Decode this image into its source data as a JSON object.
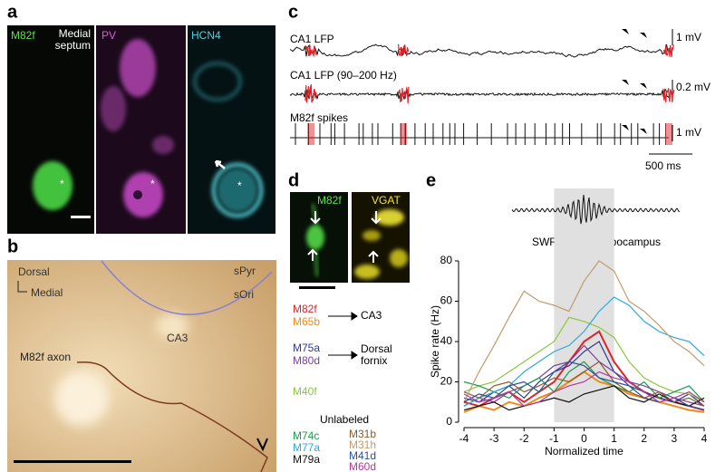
{
  "panel_a": {
    "label": "a",
    "channels": [
      "M82f",
      "Medial septum",
      "PV",
      "HCN4"
    ]
  },
  "panel_b": {
    "label": "b",
    "orientation": [
      "Dorsal",
      "Medial"
    ],
    "regions": [
      "sPyr",
      "sOri",
      "CA3"
    ],
    "axon": "M82f axon"
  },
  "panel_c": {
    "label": "c",
    "traces": [
      "CA1 LFP",
      "CA1 LFP (90–200 Hz)",
      "M82f spikes"
    ],
    "scales": [
      "1 mV",
      "0.2 mV",
      "1 mV"
    ],
    "time_scale": "500 ms"
  },
  "panel_d": {
    "label": "d",
    "channels": [
      "M82f",
      "VGAT"
    ],
    "targets": [
      "CA3",
      "Dorsal fornix"
    ],
    "group": "Unlabeled"
  },
  "panel_e": {
    "label": "e",
    "trace_label": "SWR in CA1 hippocampus"
  },
  "chart_data": {
    "type": "line",
    "x_label": "Normalized time",
    "y_label": "Spike rate (Hz)",
    "x": [
      -4,
      -3.5,
      -3,
      -2.5,
      -2,
      -1.5,
      -1,
      -0.5,
      0,
      0.5,
      1,
      1.5,
      2,
      2.5,
      3,
      3.5,
      4
    ],
    "xlim": [
      -4,
      4
    ],
    "xticks": [
      -4,
      -3,
      -2,
      -1,
      0,
      1,
      2,
      3,
      4
    ],
    "ylim": [
      0,
      80
    ],
    "yticks": [
      0,
      20,
      40,
      60,
      80
    ],
    "shaded_span": [
      -1,
      1
    ],
    "series": [
      {
        "name": "M82f",
        "color": "#d9262b",
        "values": [
          10,
          8,
          12,
          15,
          10,
          15,
          20,
          30,
          40,
          45,
          30,
          20,
          15,
          12,
          10,
          8,
          6
        ]
      },
      {
        "name": "M65b",
        "color": "#f08a1c",
        "values": [
          5,
          8,
          6,
          10,
          8,
          12,
          15,
          20,
          25,
          20,
          18,
          14,
          12,
          10,
          8,
          6,
          5
        ]
      },
      {
        "name": "M75a",
        "color": "#2b3a8f",
        "values": [
          12,
          10,
          15,
          18,
          12,
          20,
          25,
          28,
          35,
          40,
          25,
          18,
          15,
          12,
          10,
          14,
          8
        ]
      },
      {
        "name": "M80d",
        "color": "#7b3f9a",
        "values": [
          8,
          12,
          10,
          15,
          18,
          22,
          28,
          30,
          38,
          30,
          25,
          20,
          18,
          15,
          12,
          10,
          8
        ]
      },
      {
        "name": "M40f",
        "color": "#8cc63f",
        "values": [
          15,
          18,
          20,
          25,
          30,
          35,
          40,
          52,
          50,
          47,
          42,
          30,
          22,
          18,
          15,
          14,
          10
        ]
      },
      {
        "name": "M74c",
        "color": "#1a9a4a",
        "values": [
          20,
          18,
          15,
          12,
          18,
          22,
          15,
          25,
          30,
          22,
          18,
          15,
          20,
          12,
          15,
          18,
          10
        ]
      },
      {
        "name": "M77a",
        "color": "#29a9e0",
        "values": [
          8,
          12,
          15,
          18,
          25,
          30,
          35,
          38,
          45,
          55,
          62,
          58,
          50,
          45,
          42,
          40,
          33
        ]
      },
      {
        "name": "M79a",
        "color": "#111111",
        "values": [
          6,
          8,
          10,
          6,
          8,
          10,
          12,
          10,
          14,
          16,
          18,
          12,
          10,
          14,
          10,
          8,
          12
        ]
      },
      {
        "name": "M31b",
        "color": "#8b5a2b",
        "values": [
          15,
          12,
          18,
          20,
          15,
          18,
          22,
          20,
          25,
          30,
          20,
          15,
          12,
          15,
          10,
          12,
          8
        ]
      },
      {
        "name": "M31h",
        "color": "#c49a6c",
        "values": [
          10,
          25,
          38,
          52,
          65,
          60,
          58,
          55,
          70,
          80,
          75,
          60,
          55,
          48,
          40,
          35,
          28
        ]
      },
      {
        "name": "M41d",
        "color": "#2a4fa0",
        "values": [
          10,
          14,
          12,
          18,
          20,
          15,
          25,
          30,
          28,
          22,
          20,
          18,
          12,
          10,
          12,
          8,
          6
        ]
      },
      {
        "name": "M60d",
        "color": "#b03a9a",
        "values": [
          14,
          10,
          12,
          15,
          8,
          10,
          15,
          18,
          20,
          25,
          22,
          20,
          15,
          10,
          12,
          15,
          10
        ]
      }
    ]
  }
}
